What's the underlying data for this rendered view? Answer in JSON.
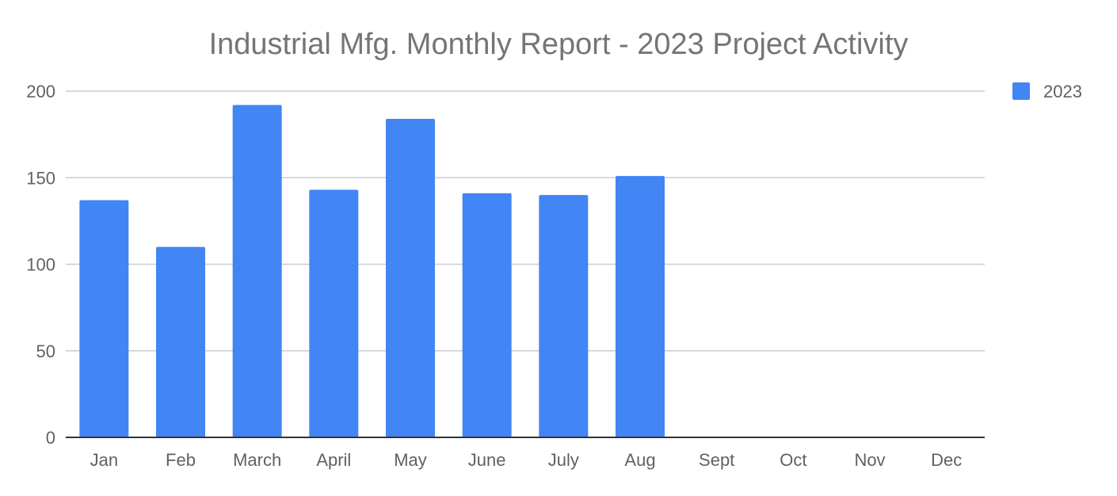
{
  "chart_data": {
    "type": "bar",
    "title": "Industrial Mfg. Monthly Report - 2023 Project Activity",
    "xlabel": "",
    "ylabel": "",
    "categories": [
      "Jan",
      "Feb",
      "March",
      "April",
      "May",
      "June",
      "July",
      "Aug",
      "Sept",
      "Oct",
      "Nov",
      "Dec"
    ],
    "series": [
      {
        "name": "2023",
        "color": "#4285f4",
        "values": [
          137,
          110,
          192,
          143,
          184,
          141,
          140,
          151,
          null,
          null,
          null,
          null
        ]
      }
    ],
    "ylim": [
      0,
      200
    ],
    "yticks": [
      0,
      50,
      100,
      150,
      200
    ],
    "grid": true,
    "legend_position": "top-right"
  }
}
